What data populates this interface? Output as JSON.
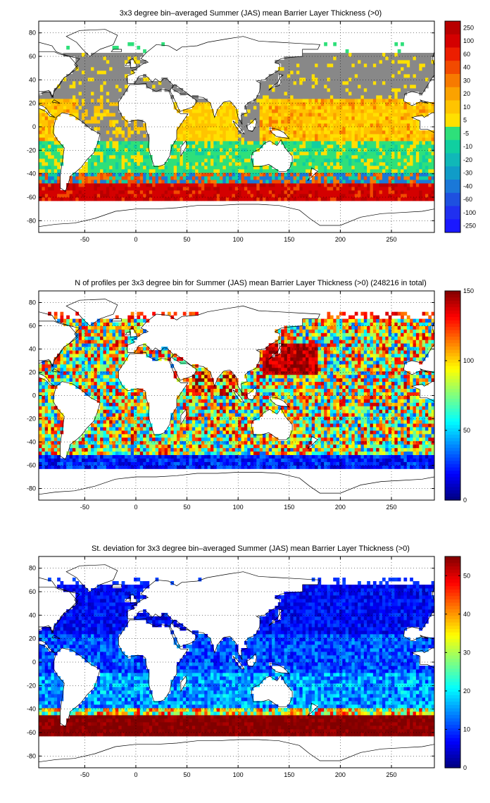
{
  "panels": [
    {
      "title": "3x3 degree bin–averaged Summer (JAS) mean Barrier Layer Thickness (>0)",
      "colorbar": {
        "kind": "categorical",
        "labels": [
          "250",
          "100",
          "60",
          "40",
          "30",
          "20",
          "10",
          "5",
          "-5",
          "-10",
          "-20",
          "-30",
          "-40",
          "-60",
          "-100",
          "-250"
        ],
        "colors": [
          "#b80000",
          "#d40000",
          "#ec1e00",
          "#f24a00",
          "#f77a00",
          "#fba200",
          "#ffc400",
          "#ffe000",
          "#2ee07a",
          "#10cfa0",
          "#10b8b8",
          "#109cc8",
          "#1a78d8",
          "#1e50e0",
          "#2030f0",
          "#1a18ff"
        ]
      }
    },
    {
      "title": "N of profiles per 3x3 degree bin for Summer (JAS) mean Barrier Layer Thickness (>0) (248216 in total)",
      "colorbar": {
        "kind": "continuous",
        "min": 0,
        "max": 150,
        "ticks": [
          0,
          50,
          100,
          150
        ]
      }
    },
    {
      "title": "St. deviation for 3x3 degree bin–averaged Summer (JAS) mean Barrier Layer Thickness (>0)",
      "colorbar": {
        "kind": "continuous",
        "min": 0,
        "max": 55,
        "ticks": [
          0,
          10,
          20,
          30,
          40,
          50
        ]
      }
    }
  ],
  "chart_data": [
    {
      "type": "heatmap",
      "title": "3x3 degree bin–averaged Summer (JAS) mean Barrier Layer Thickness (>0)",
      "xlabel": "",
      "ylabel": "",
      "xlim": [
        -95,
        292
      ],
      "ylim": [
        -90,
        90
      ],
      "xticks": [
        -50,
        0,
        50,
        100,
        150,
        200,
        250
      ],
      "yticks": [
        -80,
        -60,
        -40,
        -20,
        0,
        20,
        40,
        60,
        80
      ],
      "grid": true,
      "colorbar_labels": [
        "250",
        "100",
        "60",
        "40",
        "30",
        "20",
        "10",
        "5",
        "-5",
        "-10",
        "-20",
        "-30",
        "-40",
        "-60",
        "-100",
        "-250"
      ],
      "regions": [
        {
          "name": "north-ocean-gray",
          "lon": [
            -95,
            292
          ],
          "lat": [
            -10,
            70
          ],
          "level": "-5..5"
        },
        {
          "name": "tropical-yellow-band",
          "lon": [
            120,
            292
          ],
          "lat": [
            -20,
            20
          ],
          "level": "5..20"
        },
        {
          "name": "southern-green-band",
          "lon": [
            -95,
            292
          ],
          "lat": [
            -35,
            -15
          ],
          "level": "-20..-5"
        },
        {
          "name": "southern-red-band",
          "lon": [
            -95,
            292
          ],
          "lat": [
            -63,
            -48
          ],
          "level": "60..250"
        }
      ]
    },
    {
      "type": "heatmap",
      "title": "N of profiles per 3x3 degree bin for Summer (JAS) mean Barrier Layer Thickness (>0) (248216 in total)",
      "xlabel": "",
      "ylabel": "",
      "xlim": [
        -95,
        292
      ],
      "ylim": [
        -90,
        90
      ],
      "xticks": [
        -50,
        0,
        50,
        100,
        150,
        200,
        250
      ],
      "yticks": [
        -80,
        -60,
        -40,
        -20,
        0,
        20,
        40,
        60,
        80
      ],
      "grid": true,
      "colorbar": {
        "min": 0,
        "max": 150,
        "ticks": [
          0,
          50,
          100,
          150
        ]
      },
      "total_profiles": 248216,
      "regions": [
        {
          "name": "north-pacific-high",
          "lon": [
            130,
            175
          ],
          "lat": [
            20,
            45
          ],
          "value": 150
        },
        {
          "name": "ocean-typical",
          "lon": [
            -95,
            292
          ],
          "lat": [
            -45,
            60
          ],
          "value": 60
        },
        {
          "name": "southern-low",
          "lon": [
            -95,
            292
          ],
          "lat": [
            -63,
            -50
          ],
          "value": 10
        }
      ]
    },
    {
      "type": "heatmap",
      "title": "St. deviation for 3x3 degree bin–averaged Summer (JAS) mean Barrier Layer Thickness (>0)",
      "xlabel": "",
      "ylabel": "",
      "xlim": [
        -95,
        292
      ],
      "ylim": [
        -90,
        90
      ],
      "xticks": [
        -50,
        0,
        50,
        100,
        150,
        200,
        250
      ],
      "yticks": [
        -80,
        -60,
        -40,
        -20,
        0,
        20,
        40,
        60,
        80
      ],
      "grid": true,
      "colorbar": {
        "min": 0,
        "max": 55,
        "ticks": [
          0,
          10,
          20,
          30,
          40,
          50
        ]
      },
      "regions": [
        {
          "name": "northern-oceans",
          "lon": [
            -95,
            292
          ],
          "lat": [
            -10,
            60
          ],
          "value": 5
        },
        {
          "name": "tropics-south",
          "lon": [
            -95,
            292
          ],
          "lat": [
            -40,
            -10
          ],
          "value": 15
        },
        {
          "name": "southern-band",
          "lon": [
            -95,
            292
          ],
          "lat": [
            -63,
            -45
          ],
          "value": 55
        }
      ]
    }
  ]
}
